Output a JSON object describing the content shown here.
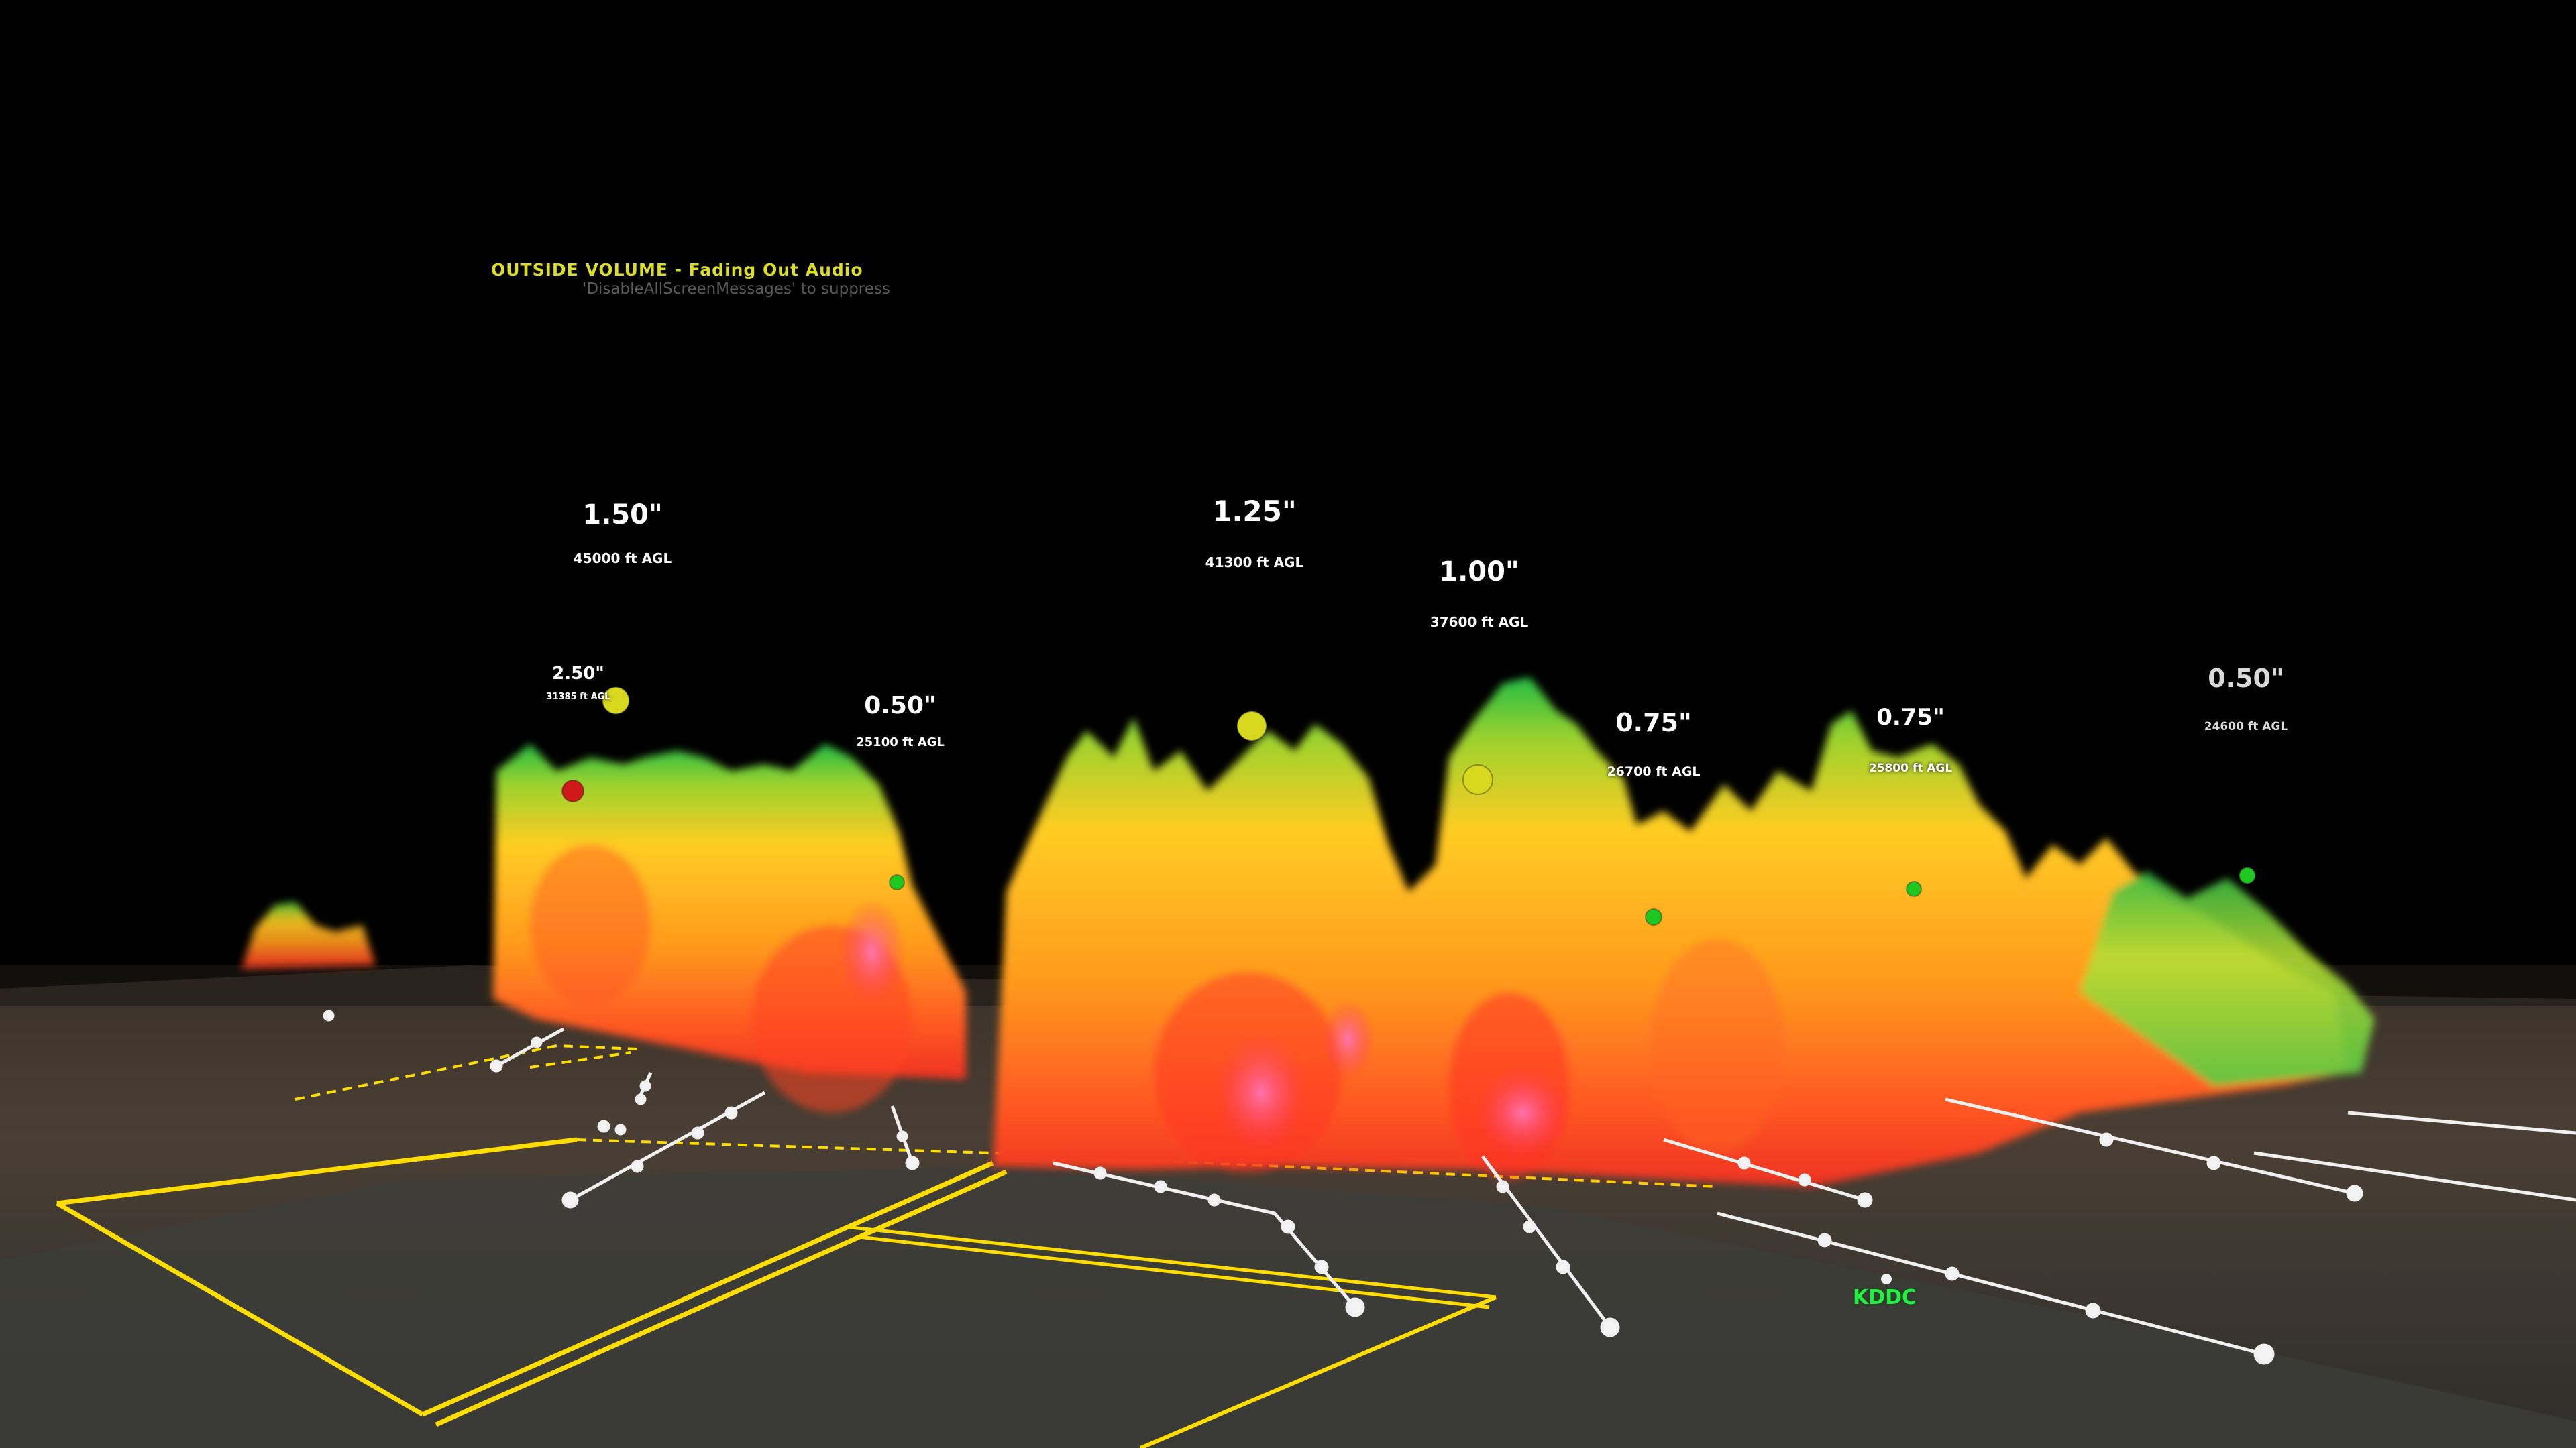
{
  "screen_messages": {
    "warning": "OUTSIDE VOLUME - Fading Out Audio",
    "hint": "'DisableAllScreenMessages' to suppress"
  },
  "hail_markers": [
    {
      "size": "1.50\"",
      "altitude": "45000 ft AGL",
      "marker_color": "#d8d81e"
    },
    {
      "size": "2.50\"",
      "altitude": "31385 ft AGL",
      "marker_color": "#d01a1a"
    },
    {
      "size": "0.50\"",
      "altitude": "25100 ft AGL",
      "marker_color": "#1ec81e"
    },
    {
      "size": "1.25\"",
      "altitude": "41300 ft AGL",
      "marker_color": "#d8d81e"
    },
    {
      "size": "1.00\"",
      "altitude": "37600 ft AGL",
      "marker_color": "#d8d81e"
    },
    {
      "size": "0.75\"",
      "altitude": "26700 ft AGL",
      "marker_color": "#1ec81e"
    },
    {
      "size": "0.75\"",
      "altitude": "25800 ft AGL",
      "marker_color": "#1ec81e"
    },
    {
      "size": "0.50\"",
      "altitude": "24600 ft AGL",
      "marker_color": "#1ec81e"
    }
  ],
  "radar_station": "KDDC",
  "colors": {
    "background": "#000000",
    "county_lines": "#ffdd00",
    "storm_tracks": "#f0f0f0",
    "reflectivity_low": "#22bb44",
    "reflectivity_mid": "#ffcc22",
    "reflectivity_high": "#ff5522",
    "reflectivity_max": "#ff66aa"
  }
}
